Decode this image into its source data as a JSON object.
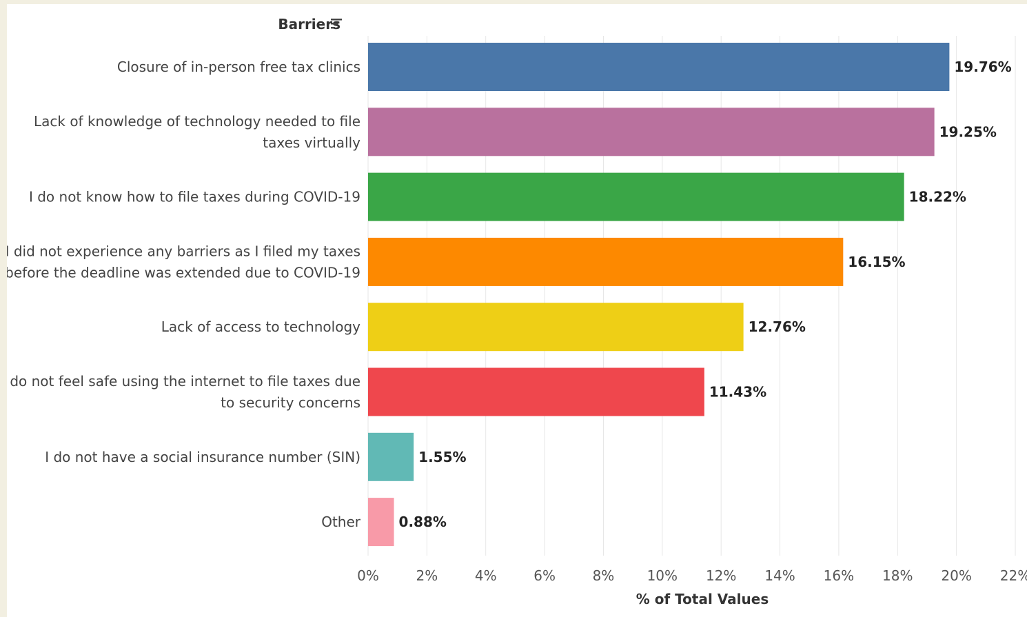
{
  "chart_data": {
    "type": "bar",
    "orientation": "horizontal",
    "category_header": "Barriers",
    "sort_icon": "sort-descending-icon",
    "xlabel": "% of Total Values",
    "xlim": [
      0,
      22
    ],
    "x_ticks": [
      0,
      2,
      4,
      6,
      8,
      10,
      12,
      14,
      16,
      18,
      20,
      22
    ],
    "x_tick_labels": [
      "0%",
      "2%",
      "4%",
      "6%",
      "8%",
      "10%",
      "12%",
      "14%",
      "16%",
      "18%",
      "20%",
      "22%"
    ],
    "grid": "vertical",
    "categories": [
      [
        "Closure of in-person free tax clinics"
      ],
      [
        "Lack of knowledge of technology needed to file",
        "taxes virtually"
      ],
      [
        "I do not know how to file taxes during COVID-19"
      ],
      [
        "I did not experience any barriers as I filed my taxes",
        "before the deadline was extended due to COVID-19"
      ],
      [
        "Lack of access to technology"
      ],
      [
        "I do not feel safe using the internet to file taxes due",
        "to security concerns"
      ],
      [
        "I do not have a social insurance number (SIN)"
      ],
      [
        "Other"
      ]
    ],
    "values": [
      19.76,
      19.25,
      18.22,
      16.15,
      12.76,
      11.43,
      1.55,
      0.88
    ],
    "value_labels": [
      "19.76%",
      "19.25%",
      "18.22%",
      "16.15%",
      "12.76%",
      "11.43%",
      "1.55%",
      "0.88%"
    ],
    "colors": [
      "#4a77a9",
      "#b9719e",
      "#3aa647",
      "#fd8900",
      "#eecf16",
      "#ef474d",
      "#61b9b5",
      "#f89aa8"
    ]
  }
}
